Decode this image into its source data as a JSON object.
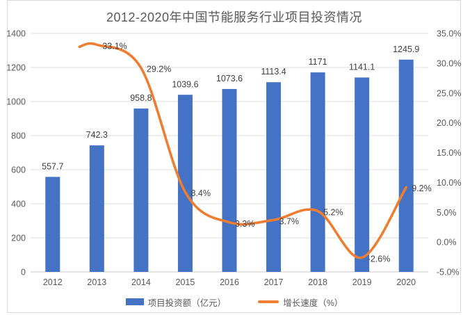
{
  "chart_data": {
    "type": "combo-bar-line",
    "title": "2012-2020年中国节能服务行业项目投资情况",
    "categories": [
      "2012",
      "2013",
      "2014",
      "2015",
      "2016",
      "2017",
      "2018",
      "2019",
      "2020"
    ],
    "series": [
      {
        "name": "项目投资额（亿元）",
        "kind": "bar",
        "axis": "left",
        "color": "#4472C4",
        "values": [
          557.7,
          742.3,
          958.8,
          1039.6,
          1073.6,
          1113.4,
          1171,
          1141.1,
          1245.9
        ],
        "labels": [
          "557.7",
          "742.3",
          "958.8",
          "1039.6",
          "1073.6",
          "1113.4",
          "1171",
          "1141.1",
          "1245.9"
        ]
      },
      {
        "name": "增长速度（%）",
        "kind": "line",
        "axis": "right",
        "color": "#ED7D31",
        "values": [
          null,
          33.1,
          29.2,
          8.4,
          3.3,
          3.7,
          5.2,
          -2.6,
          9.2
        ],
        "labels": [
          null,
          "33.1%",
          "29.2%",
          "8.4%",
          "3.3%",
          "3.7%",
          "5.2%",
          "-2.6%",
          "9.2%"
        ]
      }
    ],
    "left_axis": {
      "min": 0,
      "max": 1400,
      "step": 200,
      "labels": [
        "0",
        "200",
        "400",
        "600",
        "800",
        "1000",
        "1200",
        "1400"
      ]
    },
    "right_axis": {
      "min": -5,
      "max": 35,
      "step": 5,
      "labels": [
        "-5.0%",
        "0.0%",
        "5.0%",
        "10.0%",
        "15.0%",
        "20.0%",
        "25.0%",
        "30.0%",
        "35.0%"
      ]
    },
    "grid": true,
    "legend_position": "bottom",
    "colors": {
      "grid": "#dcdcdc",
      "axis_line": "#c8c8c8",
      "tick_text": "#595959",
      "data_label": "#404040"
    }
  }
}
